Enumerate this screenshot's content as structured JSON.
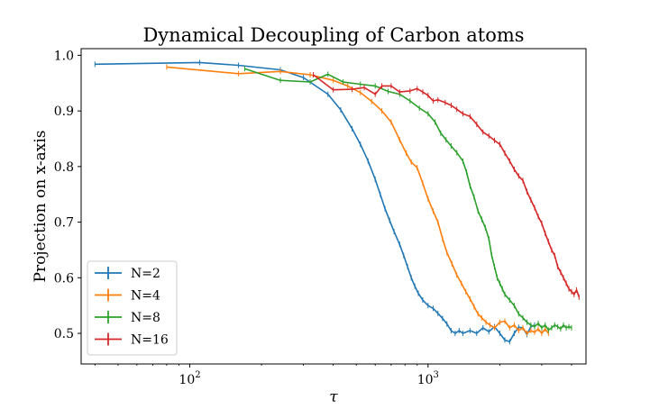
{
  "chart_data": {
    "type": "line",
    "title": "Dynamical Decoupling of Carbon atoms",
    "xlabel": "τ",
    "ylabel": "Projection on x-axis",
    "x_scale": "log",
    "xlim": [
      35,
      4600
    ],
    "ylim": [
      0.445,
      1.012
    ],
    "x_ticks": [
      {
        "value": 100,
        "base": "10",
        "exp": "2"
      },
      {
        "value": 1000,
        "base": "10",
        "exp": "3"
      }
    ],
    "y_ticks": [
      {
        "value": 0.5,
        "label": "0.5"
      },
      {
        "value": 0.6,
        "label": "0.6"
      },
      {
        "value": 0.7,
        "label": "0.7"
      },
      {
        "value": 0.8,
        "label": "0.8"
      },
      {
        "value": 0.9,
        "label": "0.9"
      },
      {
        "value": 1.0,
        "label": "1.0"
      }
    ],
    "legend_position": "lower-left",
    "grid": false,
    "series": [
      {
        "name": "N=2",
        "color": "#1f77b4",
        "points": [
          [
            40,
            0.984
          ],
          [
            110,
            0.987
          ],
          [
            160,
            0.982
          ],
          [
            240,
            0.974
          ],
          [
            300,
            0.96
          ],
          [
            380,
            0.93
          ],
          [
            430,
            0.902
          ],
          [
            480,
            0.868
          ],
          [
            520,
            0.84
          ],
          [
            560,
            0.81
          ],
          [
            600,
            0.777
          ],
          [
            630,
            0.75
          ],
          [
            660,
            0.724
          ],
          [
            690,
            0.703
          ],
          [
            720,
            0.683
          ],
          [
            760,
            0.66
          ],
          [
            790,
            0.64
          ],
          [
            820,
            0.62
          ],
          [
            850,
            0.6
          ],
          [
            880,
            0.585
          ],
          [
            910,
            0.572
          ],
          [
            950,
            0.56
          ],
          [
            1000,
            0.55
          ],
          [
            1050,
            0.545
          ],
          [
            1100,
            0.536
          ],
          [
            1150,
            0.527
          ],
          [
            1200,
            0.517
          ],
          [
            1250,
            0.505
          ],
          [
            1300,
            0.5
          ],
          [
            1350,
            0.505
          ],
          [
            1400,
            0.5
          ],
          [
            1500,
            0.505
          ],
          [
            1600,
            0.5
          ],
          [
            1700,
            0.51
          ],
          [
            1800,
            0.503
          ],
          [
            1900,
            0.512
          ],
          [
            2000,
            0.5
          ],
          [
            2100,
            0.488
          ],
          [
            2200,
            0.485
          ],
          [
            2300,
            0.5
          ],
          [
            2400,
            0.511
          ],
          [
            2500,
            0.51
          ],
          [
            2600,
            0.498
          ],
          [
            2700,
            0.512
          ],
          [
            2800,
            0.515
          ]
        ]
      },
      {
        "name": "N=4",
        "color": "#ff7f0e",
        "points": [
          [
            80,
            0.979
          ],
          [
            160,
            0.967
          ],
          [
            240,
            0.971
          ],
          [
            320,
            0.965
          ],
          [
            400,
            0.955
          ],
          [
            460,
            0.945
          ],
          [
            520,
            0.933
          ],
          [
            580,
            0.917
          ],
          [
            640,
            0.9
          ],
          [
            700,
            0.88
          ],
          [
            760,
            0.848
          ],
          [
            810,
            0.824
          ],
          [
            850,
            0.808
          ],
          [
            900,
            0.798
          ],
          [
            950,
            0.77
          ],
          [
            1000,
            0.742
          ],
          [
            1050,
            0.72
          ],
          [
            1100,
            0.7
          ],
          [
            1150,
            0.67
          ],
          [
            1200,
            0.645
          ],
          [
            1260,
            0.625
          ],
          [
            1320,
            0.605
          ],
          [
            1380,
            0.59
          ],
          [
            1440,
            0.575
          ],
          [
            1500,
            0.562
          ],
          [
            1560,
            0.548
          ],
          [
            1620,
            0.535
          ],
          [
            1680,
            0.528
          ],
          [
            1750,
            0.52
          ],
          [
            1820,
            0.515
          ],
          [
            1900,
            0.51
          ],
          [
            2000,
            0.52
          ],
          [
            2100,
            0.522
          ],
          [
            2200,
            0.51
          ],
          [
            2300,
            0.515
          ],
          [
            2400,
            0.505
          ],
          [
            2500,
            0.51
          ],
          [
            2600,
            0.5
          ],
          [
            2700,
            0.505
          ],
          [
            2800,
            0.502
          ],
          [
            2900,
            0.508
          ],
          [
            3000,
            0.5
          ],
          [
            3100,
            0.508
          ],
          [
            3200,
            0.5
          ]
        ]
      },
      {
        "name": "N=8",
        "color": "#2ca02c",
        "points": [
          [
            170,
            0.976
          ],
          [
            240,
            0.955
          ],
          [
            320,
            0.952
          ],
          [
            380,
            0.966
          ],
          [
            440,
            0.952
          ],
          [
            520,
            0.948
          ],
          [
            600,
            0.945
          ],
          [
            680,
            0.935
          ],
          [
            760,
            0.93
          ],
          [
            840,
            0.918
          ],
          [
            920,
            0.905
          ],
          [
            1000,
            0.895
          ],
          [
            1070,
            0.88
          ],
          [
            1130,
            0.86
          ],
          [
            1190,
            0.848
          ],
          [
            1250,
            0.837
          ],
          [
            1320,
            0.825
          ],
          [
            1400,
            0.81
          ],
          [
            1450,
            0.79
          ],
          [
            1500,
            0.765
          ],
          [
            1560,
            0.745
          ],
          [
            1620,
            0.72
          ],
          [
            1680,
            0.705
          ],
          [
            1740,
            0.69
          ],
          [
            1800,
            0.67
          ],
          [
            1850,
            0.64
          ],
          [
            1900,
            0.62
          ],
          [
            1950,
            0.6
          ],
          [
            2000,
            0.59
          ],
          [
            2050,
            0.58
          ],
          [
            2100,
            0.57
          ],
          [
            2200,
            0.56
          ],
          [
            2300,
            0.55
          ],
          [
            2400,
            0.535
          ],
          [
            2500,
            0.528
          ],
          [
            2600,
            0.52
          ],
          [
            2700,
            0.515
          ],
          [
            2800,
            0.512
          ],
          [
            2900,
            0.518
          ],
          [
            3000,
            0.51
          ],
          [
            3100,
            0.515
          ],
          [
            3200,
            0.506
          ],
          [
            3300,
            0.51
          ],
          [
            3400,
            0.515
          ],
          [
            3500,
            0.512
          ],
          [
            3600,
            0.508
          ],
          [
            3700,
            0.515
          ],
          [
            3800,
            0.51
          ],
          [
            3900,
            0.512
          ],
          [
            4000,
            0.51
          ]
        ]
      },
      {
        "name": "N=16",
        "color": "#d62728",
        "points": [
          [
            330,
            0.965
          ],
          [
            400,
            0.938
          ],
          [
            480,
            0.939
          ],
          [
            540,
            0.942
          ],
          [
            600,
            0.93
          ],
          [
            640,
            0.945
          ],
          [
            700,
            0.945
          ],
          [
            760,
            0.934
          ],
          [
            840,
            0.936
          ],
          [
            900,
            0.94
          ],
          [
            950,
            0.934
          ],
          [
            1000,
            0.928
          ],
          [
            1050,
            0.918
          ],
          [
            1100,
            0.92
          ],
          [
            1180,
            0.915
          ],
          [
            1250,
            0.91
          ],
          [
            1320,
            0.903
          ],
          [
            1400,
            0.895
          ],
          [
            1500,
            0.89
          ],
          [
            1600,
            0.876
          ],
          [
            1700,
            0.862
          ],
          [
            1800,
            0.855
          ],
          [
            1900,
            0.847
          ],
          [
            2000,
            0.84
          ],
          [
            2100,
            0.824
          ],
          [
            2200,
            0.81
          ],
          [
            2300,
            0.795
          ],
          [
            2400,
            0.783
          ],
          [
            2500,
            0.775
          ],
          [
            2600,
            0.755
          ],
          [
            2700,
            0.74
          ],
          [
            2800,
            0.726
          ],
          [
            2900,
            0.71
          ],
          [
            3000,
            0.698
          ],
          [
            3100,
            0.68
          ],
          [
            3200,
            0.665
          ],
          [
            3300,
            0.65
          ],
          [
            3400,
            0.64
          ],
          [
            3500,
            0.62
          ],
          [
            3600,
            0.61
          ],
          [
            3700,
            0.6
          ],
          [
            3800,
            0.59
          ],
          [
            3900,
            0.58
          ],
          [
            4000,
            0.575
          ],
          [
            4100,
            0.57
          ],
          [
            4200,
            0.578
          ],
          [
            4300,
            0.565
          ]
        ]
      }
    ]
  }
}
